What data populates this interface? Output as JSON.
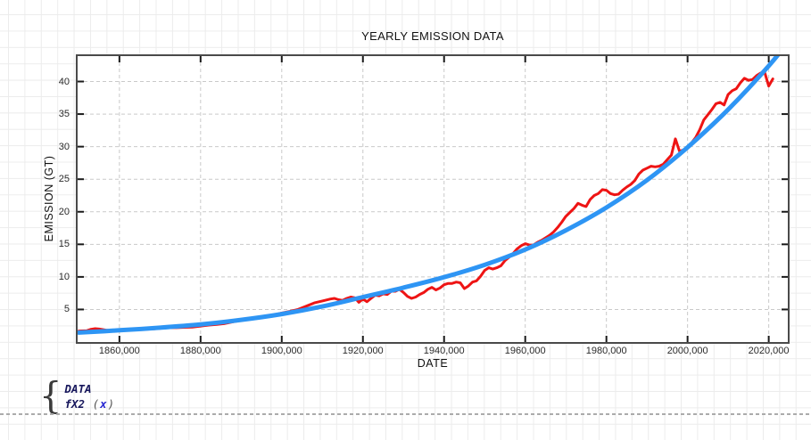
{
  "legend": {
    "brace": "{",
    "fit": {
      "name": "fX2",
      "open": "(",
      "arg": "x",
      "close": ")"
    }
  },
  "chart_data": {
    "type": "line",
    "title": "YEARLY EMISSION DATA",
    "xlabel": "DATE",
    "ylabel": "EMISSION (GT)",
    "xlim": [
      1849.7,
      2024.7
    ],
    "ylim": [
      0,
      43.9
    ],
    "grid": "dashed gridlines at major ticks, plot boxed with inward ticks on all four sides",
    "legend_position": "below plot, bottom-left, brace-grouped list",
    "xticks": [
      {
        "label": "1860,000",
        "value": 1860
      },
      {
        "label": "1880,000",
        "value": 1880
      },
      {
        "label": "1900,000",
        "value": 1900
      },
      {
        "label": "1920,000",
        "value": 1920
      },
      {
        "label": "1940,000",
        "value": 1940
      },
      {
        "label": "1960,000",
        "value": 1960
      },
      {
        "label": "1980,000",
        "value": 1980
      },
      {
        "label": "2000,000",
        "value": 2000
      },
      {
        "label": "2020,000",
        "value": 2020
      }
    ],
    "yticks": [
      {
        "label": "5",
        "value": 5
      },
      {
        "label": "10",
        "value": 10
      },
      {
        "label": "15",
        "value": 15
      },
      {
        "label": "20",
        "value": 20
      },
      {
        "label": "25",
        "value": 25
      },
      {
        "label": "30",
        "value": 30
      },
      {
        "label": "35",
        "value": 35
      },
      {
        "label": "40",
        "value": 40
      }
    ],
    "series": [
      {
        "name": "DATA",
        "color": "#ee1414",
        "width": 3,
        "smooth": false,
        "style": "jagged measured data line",
        "points": [
          [
            1850,
            1.7
          ],
          [
            1852,
            1.75
          ],
          [
            1853,
            1.95
          ],
          [
            1854,
            2.05
          ],
          [
            1855,
            2.0
          ],
          [
            1856,
            1.9
          ],
          [
            1857,
            1.8
          ],
          [
            1858,
            1.75
          ],
          [
            1860,
            1.8
          ],
          [
            1862,
            1.85
          ],
          [
            1864,
            1.9
          ],
          [
            1866,
            1.95
          ],
          [
            1868,
            2.0
          ],
          [
            1870,
            2.1
          ],
          [
            1872,
            2.2
          ],
          [
            1874,
            2.2
          ],
          [
            1876,
            2.25
          ],
          [
            1878,
            2.3
          ],
          [
            1880,
            2.45
          ],
          [
            1882,
            2.6
          ],
          [
            1884,
            2.7
          ],
          [
            1886,
            2.85
          ],
          [
            1888,
            3.1
          ],
          [
            1890,
            3.35
          ],
          [
            1892,
            3.5
          ],
          [
            1894,
            3.7
          ],
          [
            1896,
            3.95
          ],
          [
            1898,
            4.15
          ],
          [
            1900,
            4.45
          ],
          [
            1902,
            4.7
          ],
          [
            1904,
            5.0
          ],
          [
            1906,
            5.5
          ],
          [
            1908,
            6.0
          ],
          [
            1910,
            6.3
          ],
          [
            1912,
            6.6
          ],
          [
            1913,
            6.7
          ],
          [
            1914,
            6.5
          ],
          [
            1915,
            6.4
          ],
          [
            1916,
            6.7
          ],
          [
            1917,
            6.9
          ],
          [
            1918,
            6.8
          ],
          [
            1919,
            6.1
          ],
          [
            1920,
            6.6
          ],
          [
            1921,
            6.2
          ],
          [
            1922,
            6.7
          ],
          [
            1923,
            7.2
          ],
          [
            1924,
            7.1
          ],
          [
            1925,
            7.4
          ],
          [
            1926,
            7.3
          ],
          [
            1927,
            7.8
          ],
          [
            1928,
            7.8
          ],
          [
            1929,
            8.1
          ],
          [
            1930,
            7.6
          ],
          [
            1931,
            7.0
          ],
          [
            1932,
            6.7
          ],
          [
            1933,
            6.9
          ],
          [
            1934,
            7.3
          ],
          [
            1935,
            7.6
          ],
          [
            1936,
            8.1
          ],
          [
            1937,
            8.4
          ],
          [
            1938,
            8.0
          ],
          [
            1939,
            8.3
          ],
          [
            1940,
            8.8
          ],
          [
            1941,
            9.0
          ],
          [
            1942,
            9.0
          ],
          [
            1943,
            9.2
          ],
          [
            1944,
            9.1
          ],
          [
            1945,
            8.2
          ],
          [
            1946,
            8.6
          ],
          [
            1947,
            9.2
          ],
          [
            1948,
            9.4
          ],
          [
            1949,
            10.1
          ],
          [
            1950,
            11.0
          ],
          [
            1951,
            11.4
          ],
          [
            1952,
            11.2
          ],
          [
            1953,
            11.4
          ],
          [
            1954,
            11.7
          ],
          [
            1955,
            12.5
          ],
          [
            1956,
            13.0
          ],
          [
            1957,
            13.6
          ],
          [
            1958,
            14.3
          ],
          [
            1959,
            14.8
          ],
          [
            1960,
            15.1
          ],
          [
            1961,
            14.9
          ],
          [
            1962,
            14.9
          ],
          [
            1963,
            15.3
          ],
          [
            1964,
            15.6
          ],
          [
            1965,
            16.0
          ],
          [
            1966,
            16.4
          ],
          [
            1967,
            16.9
          ],
          [
            1968,
            17.6
          ],
          [
            1969,
            18.4
          ],
          [
            1970,
            19.3
          ],
          [
            1971,
            19.9
          ],
          [
            1972,
            20.5
          ],
          [
            1973,
            21.3
          ],
          [
            1974,
            21.0
          ],
          [
            1975,
            20.8
          ],
          [
            1976,
            21.9
          ],
          [
            1977,
            22.5
          ],
          [
            1978,
            22.8
          ],
          [
            1979,
            23.4
          ],
          [
            1980,
            23.3
          ],
          [
            1981,
            22.8
          ],
          [
            1982,
            22.6
          ],
          [
            1983,
            22.7
          ],
          [
            1984,
            23.3
          ],
          [
            1985,
            23.8
          ],
          [
            1986,
            24.2
          ],
          [
            1987,
            24.8
          ],
          [
            1988,
            25.8
          ],
          [
            1989,
            26.4
          ],
          [
            1990,
            26.7
          ],
          [
            1991,
            27.0
          ],
          [
            1992,
            26.9
          ],
          [
            1993,
            27.0
          ],
          [
            1994,
            27.3
          ],
          [
            1995,
            28.0
          ],
          [
            1996,
            28.7
          ],
          [
            1997,
            31.2
          ],
          [
            1998,
            29.3
          ],
          [
            1999,
            29.5
          ],
          [
            2000,
            29.9
          ],
          [
            2001,
            30.6
          ],
          [
            2002,
            31.4
          ],
          [
            2003,
            32.6
          ],
          [
            2004,
            34.1
          ],
          [
            2005,
            34.9
          ],
          [
            2006,
            35.7
          ],
          [
            2007,
            36.6
          ],
          [
            2008,
            36.8
          ],
          [
            2009,
            36.4
          ],
          [
            2010,
            38.0
          ],
          [
            2011,
            38.6
          ],
          [
            2012,
            38.9
          ],
          [
            2013,
            39.8
          ],
          [
            2014,
            40.5
          ],
          [
            2015,
            40.2
          ],
          [
            2016,
            40.3
          ],
          [
            2017,
            40.9
          ],
          [
            2018,
            41.3
          ],
          [
            2019,
            41.4
          ],
          [
            2020,
            39.3
          ],
          [
            2021,
            40.4
          ]
        ]
      },
      {
        "name": "fX2 (x)",
        "color": "#2e95f4",
        "width": 5,
        "smooth": true,
        "style": "smooth fitted curve",
        "points": [
          [
            1850,
            1.45
          ],
          [
            1860,
            1.8
          ],
          [
            1870,
            2.2
          ],
          [
            1880,
            2.7
          ],
          [
            1890,
            3.4
          ],
          [
            1900,
            4.3
          ],
          [
            1910,
            5.45
          ],
          [
            1920,
            6.9
          ],
          [
            1930,
            8.35
          ],
          [
            1940,
            9.95
          ],
          [
            1950,
            11.85
          ],
          [
            1960,
            14.2
          ],
          [
            1970,
            17.15
          ],
          [
            1980,
            20.65
          ],
          [
            1990,
            24.85
          ],
          [
            2000,
            29.9
          ],
          [
            2010,
            35.7
          ],
          [
            2020,
            42.4
          ],
          [
            2025,
            46.3
          ]
        ]
      }
    ],
    "colors": {
      "data_line": "#ee1414",
      "fit_line": "#2e95f4",
      "gridline": "#c9c9c9",
      "frame": "#4a4a4a",
      "tick": "#1a1a1a",
      "worksheet_grid": "#ececec"
    }
  }
}
